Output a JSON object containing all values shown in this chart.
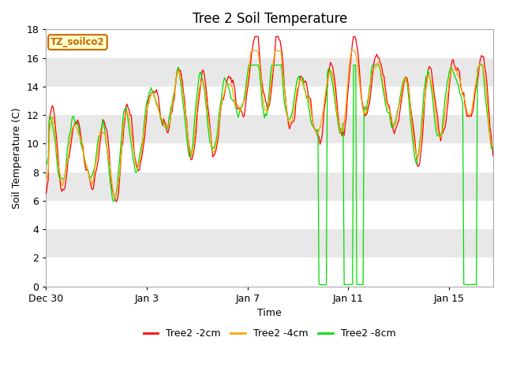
{
  "title": "Tree 2 Soil Temperature",
  "xlabel": "Time",
  "ylabel": "Soil Temperature (C)",
  "ylim": [
    0,
    18
  ],
  "yticks": [
    0,
    2,
    4,
    6,
    8,
    10,
    12,
    14,
    16,
    18
  ],
  "line_colors": {
    "2cm": "#ff0000",
    "4cm": "#ffa500",
    "8cm": "#00dd00"
  },
  "legend_labels": [
    "Tree2 -2cm",
    "Tree2 -4cm",
    "Tree2 -8cm"
  ],
  "annotation_text": "TZ_soilco2",
  "annotation_color": "#cc6600",
  "annotation_bg": "#ffffcc",
  "stripe_colors": [
    "#ffffff",
    "#e8e8e8"
  ],
  "title_fontsize": 12,
  "axis_fontsize": 9,
  "tick_fontsize": 9,
  "legend_fontsize": 9
}
